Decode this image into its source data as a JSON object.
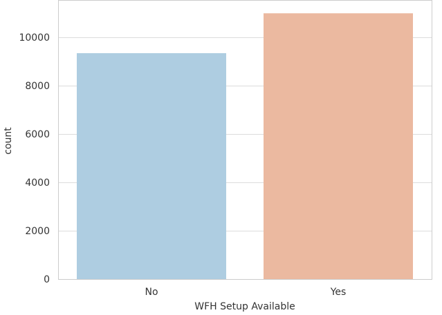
{
  "chart_data": {
    "type": "bar",
    "categories": [
      "No",
      "Yes"
    ],
    "values": [
      9350,
      11000
    ],
    "xlabel": "WFH Setup Available",
    "ylabel": "count",
    "ylim": [
      0,
      11550
    ],
    "yticks": [
      0,
      2000,
      4000,
      6000,
      8000,
      10000
    ],
    "ytick_labels": [
      "0",
      "2000",
      "4000",
      "6000",
      "8000",
      "10000"
    ],
    "grid": "horizontal",
    "colors": [
      "#aecde1",
      "#ebb9a0"
    ]
  }
}
